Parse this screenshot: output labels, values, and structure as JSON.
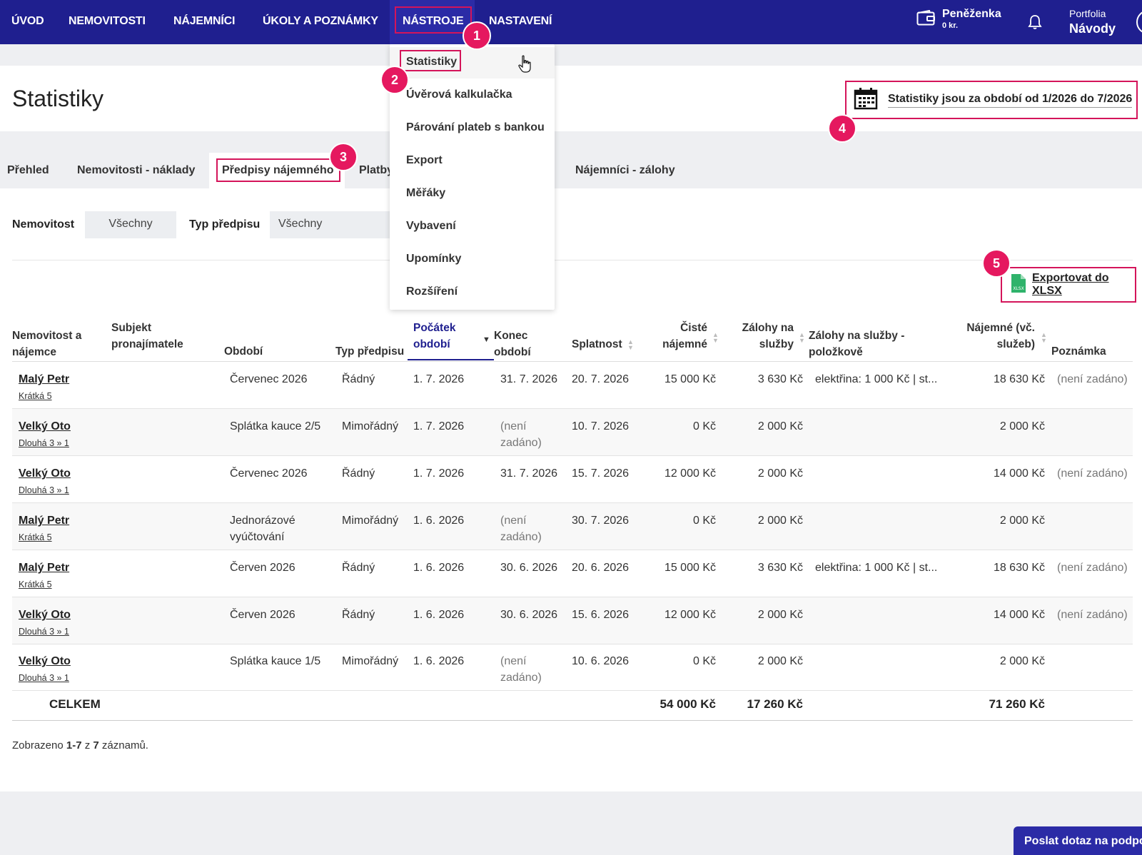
{
  "nav": {
    "items": [
      "ÚVOD",
      "NEMOVITOSTI",
      "NÁJEMNÍCI",
      "ÚKOLY A POZNÁMKY",
      "NÁSTROJE",
      "NASTAVENÍ"
    ],
    "wallet_title": "Peněženka",
    "wallet_amount": "0 kr.",
    "portfolio_label": "Portfolia",
    "portfolio_value": "Návody"
  },
  "dropdown": {
    "items": [
      "Statistiky",
      "Úvěrová kalkulačka",
      "Párování plateb s bankou",
      "Export",
      "Měřáky",
      "Vybavení",
      "Upomínky",
      "Rozšíření"
    ]
  },
  "page": {
    "title": "Statistiky",
    "period": "Statistiky jsou za období od 1/2026 do 7/2026"
  },
  "tabs": [
    "Přehled",
    "Nemovitosti - náklady",
    "Předpisy nájemného",
    "Platby",
    "Nájemníci - zálohy"
  ],
  "filters": {
    "property_label": "Nemovitost",
    "property_value": "Všechny",
    "type_label": "Typ předpisu",
    "type_value": "Všechny"
  },
  "export_label": "Exportovat do XLSX",
  "export_icon_text": "XLSX",
  "table": {
    "headers": {
      "tenant": [
        "Nemovitost a",
        "nájemce"
      ],
      "subject": [
        "Subjekt",
        "pronajímatele"
      ],
      "period": "Období",
      "type": "Typ předpisu",
      "start": [
        "Počátek",
        "období"
      ],
      "end": [
        "Konec",
        "období"
      ],
      "due": "Splatnost",
      "net": [
        "Čisté",
        "nájemné"
      ],
      "adv": [
        "Zálohy na",
        "služby"
      ],
      "adv_items": [
        "Zálohy na služby -",
        "položkově"
      ],
      "rent": [
        "Nájemné (vč.",
        "služeb)"
      ],
      "note": "Poznámka"
    },
    "rows": [
      {
        "name": "Malý Petr",
        "unit": "Krátká 5",
        "period": "Červenec 2026",
        "period2": "",
        "type": "Řádný",
        "start": "1. 7. 2026",
        "end": "31. 7. 2026",
        "end2": "",
        "due": "20. 7. 2026",
        "net": "15 000 Kč",
        "adv": "3 630 Kč",
        "adv_items": "elektřina: 1 000 Kč | st...",
        "rent": "18 630 Kč",
        "note": "(není zadáno)"
      },
      {
        "name": "Velký Oto",
        "unit": "Dlouhá 3 » 1",
        "period": "Splátka kauce 2/5",
        "period2": "",
        "type": "Mimořádný",
        "start": "1. 7. 2026",
        "end": "(není",
        "end2": "zadáno)",
        "due": "10. 7. 2026",
        "net": "0 Kč",
        "adv": "2 000 Kč",
        "adv_items": "",
        "rent": "2 000 Kč",
        "note": ""
      },
      {
        "name": "Velký Oto",
        "unit": "Dlouhá 3 » 1",
        "period": "Červenec 2026",
        "period2": "",
        "type": "Řádný",
        "start": "1. 7. 2026",
        "end": "31. 7. 2026",
        "end2": "",
        "due": "15. 7. 2026",
        "net": "12 000 Kč",
        "adv": "2 000 Kč",
        "adv_items": "",
        "rent": "14 000 Kč",
        "note": "(není zadáno)"
      },
      {
        "name": "Malý Petr",
        "unit": "Krátká 5",
        "period": "Jednorázové",
        "period2": "vyúčtování",
        "type": "Mimořádný",
        "start": "1. 6. 2026",
        "end": "(není",
        "end2": "zadáno)",
        "due": "30. 7. 2026",
        "net": "0 Kč",
        "adv": "2 000 Kč",
        "adv_items": "",
        "rent": "2 000 Kč",
        "note": ""
      },
      {
        "name": "Malý Petr",
        "unit": "Krátká 5",
        "period": "Červen 2026",
        "period2": "",
        "type": "Řádný",
        "start": "1. 6. 2026",
        "end": "30. 6. 2026",
        "end2": "",
        "due": "20. 6. 2026",
        "net": "15 000 Kč",
        "adv": "3 630 Kč",
        "adv_items": "elektřina: 1 000 Kč | st...",
        "rent": "18 630 Kč",
        "note": "(není zadáno)"
      },
      {
        "name": "Velký Oto",
        "unit": "Dlouhá 3 » 1",
        "period": "Červen 2026",
        "period2": "",
        "type": "Řádný",
        "start": "1. 6. 2026",
        "end": "30. 6. 2026",
        "end2": "",
        "due": "15. 6. 2026",
        "net": "12 000 Kč",
        "adv": "2 000 Kč",
        "adv_items": "",
        "rent": "14 000 Kč",
        "note": "(není zadáno)"
      },
      {
        "name": "Velký Oto",
        "unit": "Dlouhá 3 » 1",
        "period": "Splátka kauce 1/5",
        "period2": "",
        "type": "Mimořádný",
        "start": "1. 6. 2026",
        "end": "(není",
        "end2": "zadáno)",
        "due": "10. 6. 2026",
        "net": "0 Kč",
        "adv": "2 000 Kč",
        "adv_items": "",
        "rent": "2 000 Kč",
        "note": ""
      }
    ],
    "total": {
      "label": "CELKEM",
      "net": "54 000 Kč",
      "adv": "17 260 Kč",
      "rent": "71 260 Kč"
    }
  },
  "summary": {
    "prefix": "Zobrazeno ",
    "range": "1-7",
    "middle": " z ",
    "count": "7",
    "suffix": " záznamů."
  },
  "callouts": [
    "1",
    "2",
    "3",
    "4",
    "5"
  ],
  "support_label": "Poslat dotaz na podpo",
  "colors": {
    "nav_bg": "#1f1f8f",
    "highlight": "#d4145a",
    "callout": "#e5185f",
    "xlsx_icon": "#2fb36b"
  }
}
